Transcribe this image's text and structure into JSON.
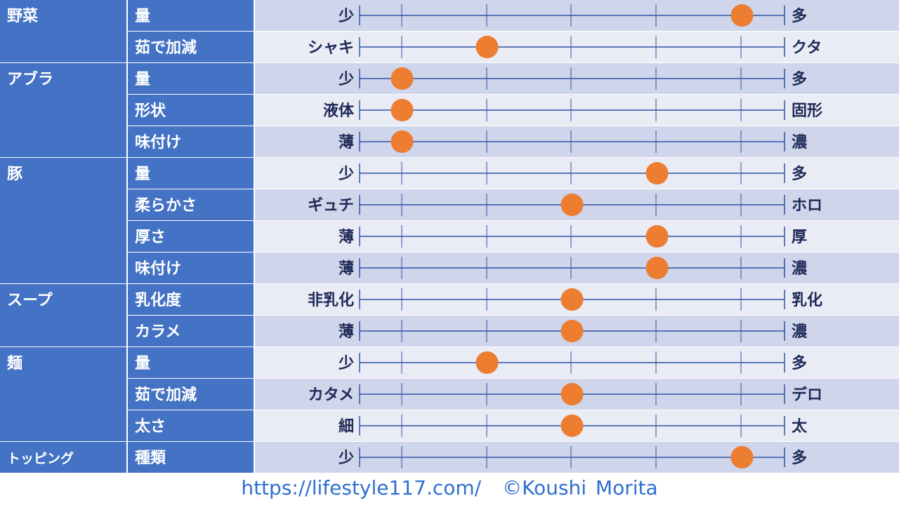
{
  "chart_data": {
    "type": "table",
    "scale_positions": 10,
    "colors": {
      "label_bg": "#4472c4",
      "label_text": "#ffffff",
      "row_dark": "#cfd5ea",
      "row_light": "#e9ebf5",
      "axis_line": "#2e55a8",
      "axis_text": "#1f2a58",
      "marker": "#ed7d31"
    },
    "groups": [
      {
        "name": "野菜",
        "rows": [
          {
            "attribute": "量",
            "left": "少",
            "right": "多",
            "value": 9
          },
          {
            "attribute": "茹で加減",
            "left": "シャキ",
            "right": "クタ",
            "value": 3
          }
        ]
      },
      {
        "name": "アブラ",
        "rows": [
          {
            "attribute": "量",
            "left": "少",
            "right": "多",
            "value": 1
          },
          {
            "attribute": "形状",
            "left": "液体",
            "right": "固形",
            "value": 1
          },
          {
            "attribute": "味付け",
            "left": "薄",
            "right": "濃",
            "value": 1
          }
        ]
      },
      {
        "name": "豚",
        "rows": [
          {
            "attribute": "量",
            "left": "少",
            "right": "多",
            "value": 7
          },
          {
            "attribute": "柔らかさ",
            "left": "ギュチ",
            "right": "ホロ",
            "value": 5
          },
          {
            "attribute": "厚さ",
            "left": "薄",
            "right": "厚",
            "value": 7
          },
          {
            "attribute": "味付け",
            "left": "薄",
            "right": "濃",
            "value": 7
          }
        ]
      },
      {
        "name": "スープ",
        "rows": [
          {
            "attribute": "乳化度",
            "left": "非乳化",
            "right": "乳化",
            "value": 5
          },
          {
            "attribute": "カラメ",
            "left": "薄",
            "right": "濃",
            "value": 5
          }
        ]
      },
      {
        "name": "麺",
        "rows": [
          {
            "attribute": "量",
            "left": "少",
            "right": "多",
            "value": 3
          },
          {
            "attribute": "茹で加減",
            "left": "カタメ",
            "right": "デロ",
            "value": 5
          },
          {
            "attribute": "太さ",
            "left": "細",
            "right": "太",
            "value": 5
          }
        ]
      },
      {
        "name": "トッピング",
        "rows": [
          {
            "attribute": "種類",
            "left": "少",
            "right": "多",
            "value": 9
          }
        ]
      }
    ]
  },
  "footer": {
    "url": "https://lifestyle117.com/",
    "credit": "©Koushi Morita"
  }
}
